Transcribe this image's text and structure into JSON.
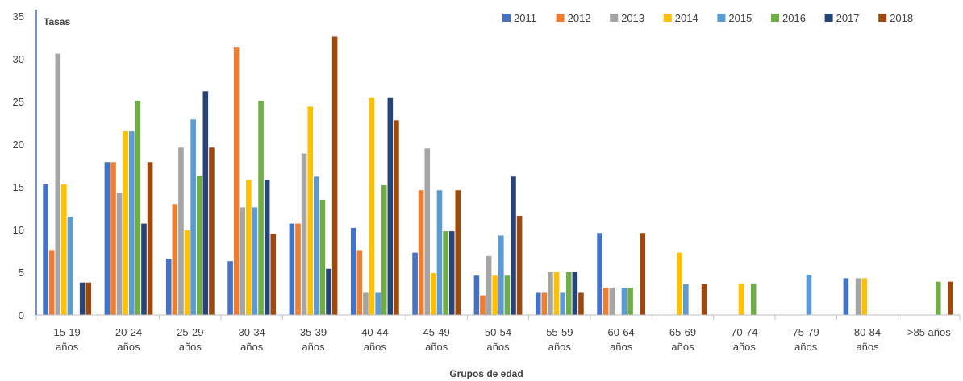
{
  "chart_data": {
    "type": "bar",
    "title": "",
    "ylabel": "Tasas",
    "xlabel": "Grupos de edad",
    "ylim": [
      0,
      35
    ],
    "yticks": [
      0,
      5,
      10,
      15,
      20,
      25,
      30,
      35
    ],
    "grid": false,
    "legend_position": "top-right",
    "categories": [
      [
        "15-19",
        "años"
      ],
      [
        "20-24",
        "años"
      ],
      [
        "25-29",
        "años"
      ],
      [
        "30-34",
        "años"
      ],
      [
        "35-39",
        "años"
      ],
      [
        "40-44",
        "años"
      ],
      [
        "45-49",
        "años"
      ],
      [
        "50-54",
        "años"
      ],
      [
        "55-59",
        "años"
      ],
      [
        "60-64",
        "años"
      ],
      [
        "65-69",
        "años"
      ],
      [
        "70-74",
        "años"
      ],
      [
        "75-79",
        "años"
      ],
      [
        "80-84",
        "años"
      ],
      [
        ">85 años"
      ]
    ],
    "series": [
      {
        "name": "2011",
        "color": "#4472C4",
        "values": [
          15.3,
          17.9,
          6.6,
          6.3,
          10.7,
          10.2,
          7.3,
          4.6,
          2.6,
          9.6,
          0,
          0,
          0,
          4.3,
          0
        ]
      },
      {
        "name": "2012",
        "color": "#ED7D31",
        "values": [
          7.6,
          17.9,
          13.0,
          31.4,
          10.7,
          7.6,
          14.6,
          2.3,
          2.6,
          3.2,
          0,
          0,
          0,
          0,
          0
        ]
      },
      {
        "name": "2013",
        "color": "#A5A5A5",
        "values": [
          30.6,
          14.3,
          19.6,
          12.6,
          18.9,
          2.6,
          19.5,
          6.9,
          5.0,
          3.2,
          0,
          0,
          0,
          4.3,
          0
        ]
      },
      {
        "name": "2014",
        "color": "#FFC000",
        "values": [
          15.3,
          21.5,
          9.9,
          15.8,
          24.4,
          25.4,
          4.9,
          4.6,
          5.0,
          0,
          7.3,
          3.7,
          0,
          4.3,
          0
        ]
      },
      {
        "name": "2015",
        "color": "#5B9BD5",
        "values": [
          11.5,
          21.5,
          22.9,
          12.6,
          16.2,
          2.6,
          14.6,
          9.3,
          2.6,
          3.2,
          3.6,
          0,
          4.7,
          0,
          0
        ]
      },
      {
        "name": "2016",
        "color": "#70AD47",
        "values": [
          0,
          25.1,
          16.3,
          25.1,
          13.5,
          15.2,
          9.8,
          4.6,
          5.0,
          3.2,
          0,
          3.7,
          0,
          0,
          3.9
        ]
      },
      {
        "name": "2017",
        "color": "#264478",
        "values": [
          3.8,
          10.7,
          26.2,
          15.8,
          5.4,
          25.4,
          9.8,
          16.2,
          5.0,
          0,
          0,
          0,
          0,
          0,
          0
        ]
      },
      {
        "name": "2018",
        "color": "#9E480E",
        "values": [
          3.8,
          17.9,
          19.6,
          9.5,
          32.6,
          22.8,
          14.6,
          11.6,
          2.6,
          9.6,
          3.6,
          0,
          0,
          0,
          3.9
        ]
      }
    ]
  }
}
